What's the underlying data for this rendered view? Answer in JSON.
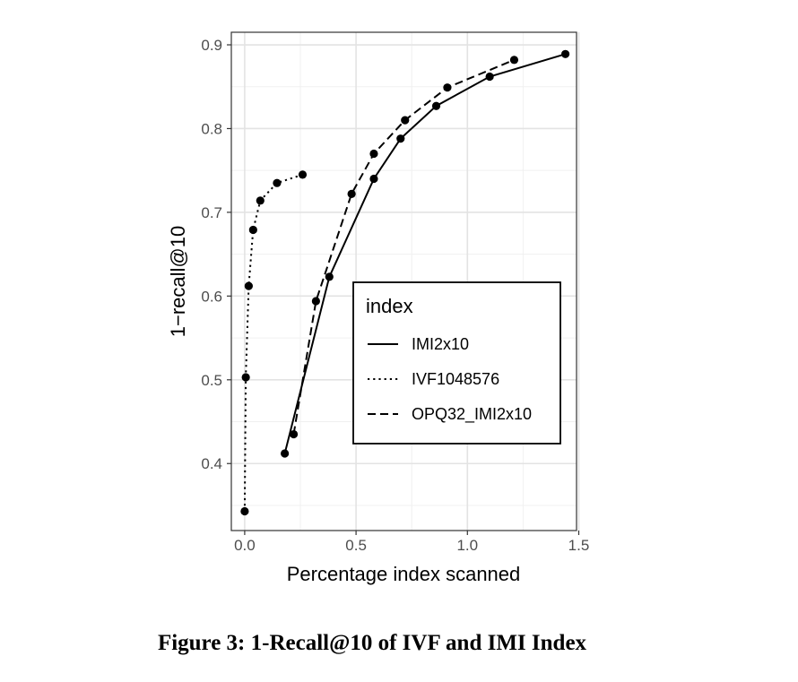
{
  "caption": "Figure 3: 1-Recall@10 of IVF and IMI Index",
  "chart_data": {
    "type": "line",
    "xlabel": "Percentage index scanned",
    "ylabel": "1−recall@10",
    "xlim": [
      -0.06,
      1.49
    ],
    "ylim": [
      0.32,
      0.915
    ],
    "xticks": [
      0.0,
      0.5,
      1.0,
      1.5
    ],
    "xtick_labels": [
      "0.0",
      "0.5",
      "1.0",
      "1.5"
    ],
    "yticks": [
      0.4,
      0.5,
      0.6,
      0.7,
      0.8,
      0.9
    ],
    "ytick_labels": [
      "0.4",
      "0.5",
      "0.6",
      "0.7",
      "0.8",
      "0.9"
    ],
    "grid": true,
    "legend": {
      "title": "index",
      "placement": "inside-right"
    },
    "series": [
      {
        "name": "IMI2x10",
        "linestyle": "solid",
        "x": [
          0.18,
          0.38,
          0.58,
          0.7,
          0.86,
          1.1,
          1.44
        ],
        "y": [
          0.412,
          0.623,
          0.74,
          0.788,
          0.827,
          0.862,
          0.889
        ]
      },
      {
        "name": "IVF1048576",
        "linestyle": "dotted",
        "x": [
          0.0,
          0.005,
          0.018,
          0.038,
          0.07,
          0.145,
          0.26
        ],
        "y": [
          0.343,
          0.503,
          0.612,
          0.679,
          0.714,
          0.735,
          0.745
        ]
      },
      {
        "name": "OPQ32_IMI2x10",
        "linestyle": "dashed",
        "x": [
          0.22,
          0.32,
          0.48,
          0.58,
          0.72,
          0.91,
          1.21
        ],
        "y": [
          0.435,
          0.594,
          0.722,
          0.77,
          0.81,
          0.849,
          0.882
        ]
      }
    ]
  }
}
